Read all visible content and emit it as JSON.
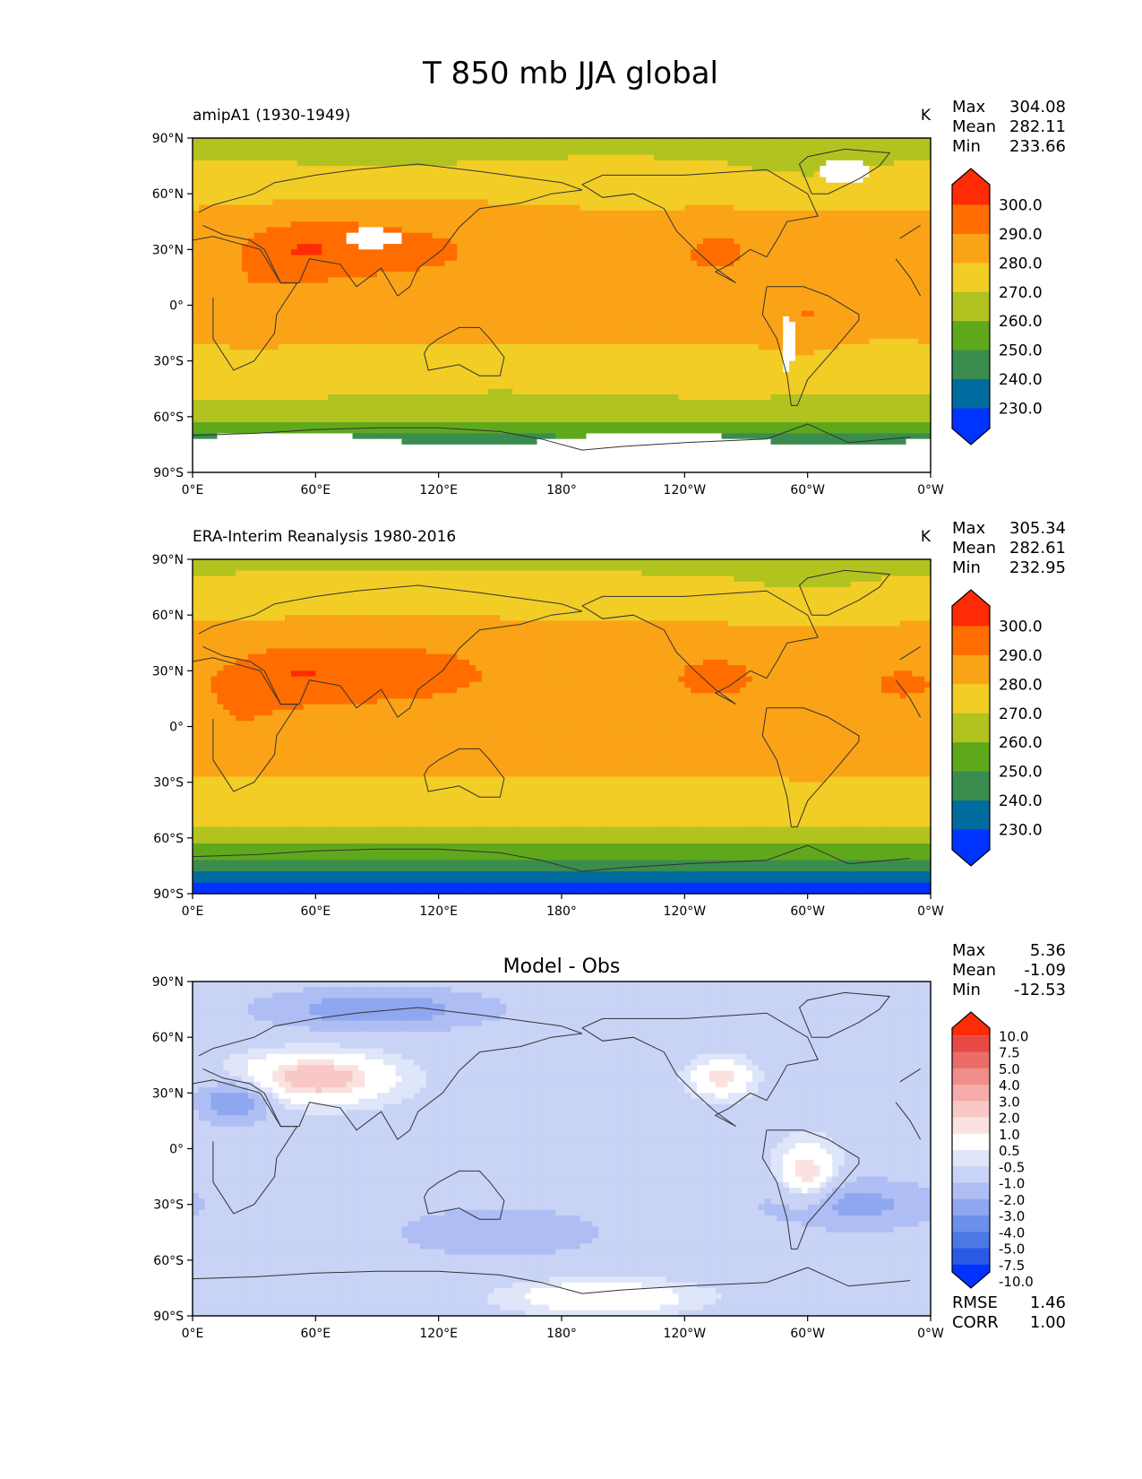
{
  "figure_title": "T 850 mb JJA global",
  "colors": {
    "seq": [
      "#0033ff",
      "#006b9e",
      "#3b8c4f",
      "#5fa81c",
      "#b1c31f",
      "#f2cd26",
      "#fba316",
      "#ff6d00",
      "#ff2a06"
    ],
    "div": [
      "#0033ff",
      "#2a5ae6",
      "#4b78e4",
      "#6c90ea",
      "#8ea7f0",
      "#aebdf3",
      "#c8d3f6",
      "#dfe6f9",
      "#ffffff",
      "#fbe2e0",
      "#f8c8c6",
      "#f5aca8",
      "#f18e89",
      "#ec6c67",
      "#e74a44",
      "#ff2a06"
    ],
    "land": "#333333"
  },
  "chart_data": [
    {
      "type": "heatmap",
      "title": "amipA1 (1930-1949)",
      "units": "K",
      "stats": {
        "max_label": "Max",
        "max": "304.08",
        "mean_label": "Mean",
        "mean": "282.11",
        "min_label": "Min",
        "min": "233.66"
      },
      "xlim": [
        0,
        360
      ],
      "ylim": [
        -90,
        90
      ],
      "x_ticks": [
        "0°E",
        "60°E",
        "120°E",
        "180°",
        "120°W",
        "60°W",
        "0°W"
      ],
      "y_ticks": [
        "90°N",
        "60°N",
        "30°N",
        "0°",
        "30°S",
        "60°S",
        "90°S"
      ],
      "colorbar": {
        "labels": [
          "300.0",
          "290.0",
          "280.0",
          "270.0",
          "260.0",
          "250.0",
          "240.0",
          "230.0"
        ],
        "levels": [
          230,
          240,
          250,
          260,
          270,
          280,
          290,
          300
        ]
      },
      "field": "model"
    },
    {
      "type": "heatmap",
      "title": "ERA-Interim Reanalysis 1980-2016",
      "units": "K",
      "stats": {
        "max_label": "Max",
        "max": "305.34",
        "mean_label": "Mean",
        "mean": "282.61",
        "min_label": "Min",
        "min": "232.95"
      },
      "xlim": [
        0,
        360
      ],
      "ylim": [
        -90,
        90
      ],
      "x_ticks": [
        "0°E",
        "60°E",
        "120°E",
        "180°",
        "120°W",
        "60°W",
        "0°W"
      ],
      "y_ticks": [
        "90°N",
        "60°N",
        "30°N",
        "0°",
        "30°S",
        "60°S",
        "90°S"
      ],
      "colorbar": {
        "labels": [
          "300.0",
          "290.0",
          "280.0",
          "270.0",
          "260.0",
          "250.0",
          "240.0",
          "230.0"
        ],
        "levels": [
          230,
          240,
          250,
          260,
          270,
          280,
          290,
          300
        ]
      },
      "field": "obs"
    },
    {
      "type": "heatmap",
      "title": "Model - Obs",
      "units": "",
      "stats": {
        "max_label": "Max",
        "max": "5.36",
        "mean_label": "Mean",
        "mean": "-1.09",
        "min_label": "Min",
        "min": "-12.53"
      },
      "xlim": [
        0,
        360
      ],
      "ylim": [
        -90,
        90
      ],
      "x_ticks": [
        "0°E",
        "60°E",
        "120°E",
        "180°",
        "120°W",
        "60°W",
        "0°W"
      ],
      "y_ticks": [
        "90°N",
        "60°N",
        "30°N",
        "0°",
        "30°S",
        "60°S",
        "90°S"
      ],
      "colorbar": {
        "labels": [
          "10.0",
          "7.5",
          "5.0",
          "4.0",
          "3.0",
          "2.0",
          "1.0",
          "0.5",
          "-0.5",
          "-1.0",
          "-2.0",
          "-3.0",
          "-4.0",
          "-5.0",
          "-7.5",
          "-10.0"
        ],
        "levels": [
          -10,
          -7.5,
          -5,
          -4,
          -3,
          -2,
          -1,
          -0.5,
          0.5,
          1,
          2,
          3,
          4,
          5,
          7.5,
          10
        ]
      },
      "metrics": {
        "rmse_label": "RMSE",
        "rmse": "1.46",
        "corr_label": "CORR",
        "corr": "1.00"
      },
      "field": "diff"
    }
  ]
}
